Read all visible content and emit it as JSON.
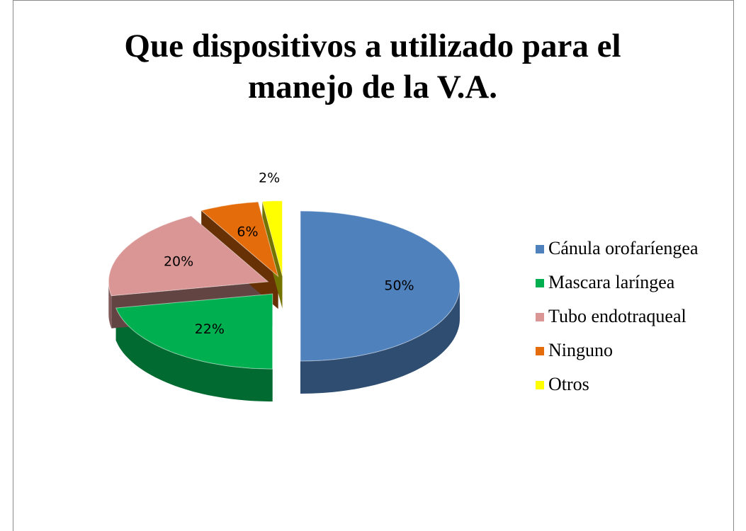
{
  "chart_data": {
    "type": "pie3d",
    "title": "Que dispositivos a utilizado para el manejo de la V.A.",
    "categories": [
      "Cánula orofaríengea",
      "Mascara laríngea",
      "Tubo endotraqueal",
      "Ninguno",
      "Otros"
    ],
    "values": [
      50,
      22,
      20,
      6,
      2
    ],
    "value_labels": [
      "50%",
      "22%",
      "20%",
      "6%",
      "2%"
    ],
    "colors": [
      "#4f81bd",
      "#00b050",
      "#d99694",
      "#e46c0a",
      "#ffff00"
    ],
    "legend": "right"
  }
}
